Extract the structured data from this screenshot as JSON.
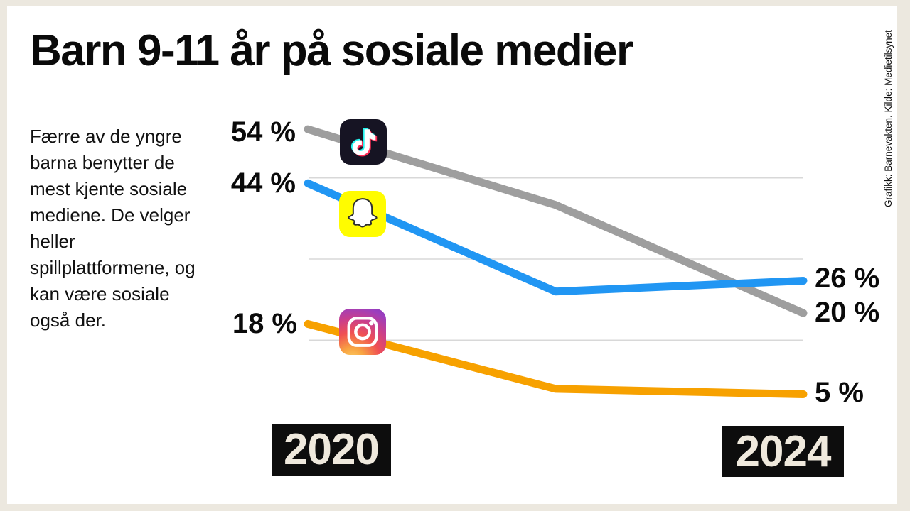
{
  "title": "Barn 9-11 år på sosiale medier",
  "description": "Færre av de yngre barna benytter de mest kjente sosiale mediene. De velger heller spillplattformene, og kan være sosiale også der.",
  "attribution": "Grafikk: Barnevakten. Kilde: Medietilsynet",
  "colors": {
    "background": "#ece8df",
    "panel": "#ffffff",
    "text": "#0a0a0a",
    "gridline": "#d8d8d8",
    "year_box_bg": "#0d0d0d",
    "year_box_text": "#efe9dd",
    "tiktok_line": "#9e9e9e",
    "snapchat_line": "#2196f3",
    "instagram_line": "#f7a100"
  },
  "chart_data": {
    "type": "line",
    "x": [
      2020,
      2022,
      2024
    ],
    "x_axis_labels": [
      "2020",
      "2024"
    ],
    "ylim": [
      0,
      60
    ],
    "grid": true,
    "gridlines_percent": [
      45,
      30,
      15
    ],
    "legend_position": "icons-on-lines",
    "series": [
      {
        "name": "TikTok",
        "icon": "tiktok-icon",
        "color": "#9e9e9e",
        "values": [
          54,
          40,
          20
        ],
        "start_label": "54 %",
        "end_label": "20 %"
      },
      {
        "name": "Snapchat",
        "icon": "snapchat-icon",
        "color": "#2196f3",
        "values": [
          44,
          24,
          26
        ],
        "start_label": "44 %",
        "end_label": "26 %"
      },
      {
        "name": "Instagram",
        "icon": "instagram-icon",
        "color": "#f7a100",
        "values": [
          18,
          6,
          5
        ],
        "start_label": "18 %",
        "end_label": "5 %"
      }
    ]
  }
}
